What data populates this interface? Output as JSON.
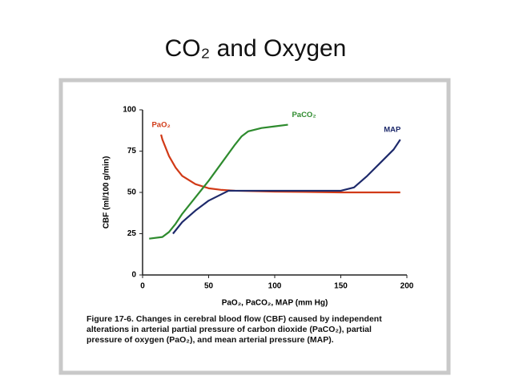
{
  "slide_title": "CO₂ and Oxygen",
  "chart_data": {
    "type": "line",
    "xlabel": "PaO₂, PaCO₂, MAP (mm Hg)",
    "ylabel": "CBF (ml/100 g/min)",
    "caption": "Figure 17-6. Changes in cerebral blood flow (CBF) caused by independent alterations in arterial partial pressure of carbon dioxide (PaCO₂), partial pressure of oxygen (PaO₂), and mean arterial pressure (MAP).",
    "xlim": [
      0,
      200
    ],
    "xticks": [
      0,
      50,
      100,
      150,
      200
    ],
    "ylim": [
      0,
      100
    ],
    "yticks": [
      0,
      25,
      50,
      75,
      100
    ],
    "series": [
      {
        "name": "PaO₂",
        "color": "#d13a17",
        "x": [
          14,
          15,
          20,
          25,
          30,
          40,
          50,
          60,
          70,
          100,
          150,
          195
        ],
        "values": [
          85,
          82,
          72,
          65,
          60,
          55,
          52.5,
          51.5,
          51,
          50.5,
          50,
          50
        ]
      },
      {
        "name": "PaCO₂",
        "color": "#2e8b2e",
        "x": [
          5,
          15,
          20,
          25,
          30,
          40,
          50,
          60,
          70,
          75,
          80,
          90,
          100,
          110
        ],
        "values": [
          22,
          23,
          26,
          31,
          37,
          47,
          57,
          68,
          79,
          84,
          87,
          89,
          90,
          91
        ]
      },
      {
        "name": "MAP",
        "color": "#1e2a6b",
        "x": [
          23,
          30,
          40,
          50,
          60,
          65,
          100,
          150,
          160,
          170,
          180,
          190,
          195
        ],
        "values": [
          25,
          32,
          39,
          45,
          49,
          51,
          51,
          51,
          53,
          60,
          68,
          76,
          82
        ]
      }
    ]
  }
}
